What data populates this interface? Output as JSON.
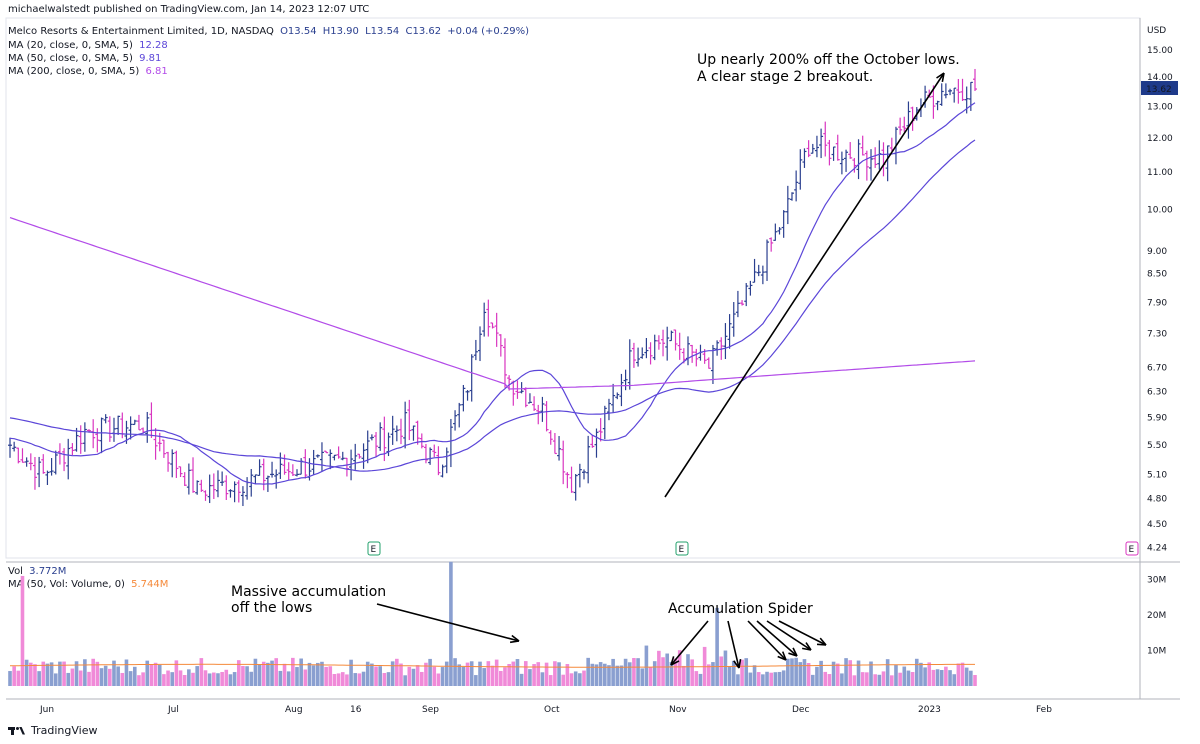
{
  "publisher": "michaelwalstedt published on TradingView.com, Jan 14, 2023 12:07 UTC",
  "legend": {
    "symbol": "Melco Resorts & Entertainment Limited, 1D, NASDAQ",
    "o": "O13.54",
    "h": "H13.90",
    "l": "L13.54",
    "c": "C13.62",
    "chg": "+0.04 (+0.29%)",
    "ma20_label": "MA (20, close, 0, SMA, 5)",
    "ma20_value": "12.28",
    "ma50_label": "MA (50, close, 0, SMA, 5)",
    "ma50_value": "9.81",
    "ma200_label": "MA (200, close, 0, SMA, 5)",
    "ma200_value": "6.81"
  },
  "volume_legend": {
    "vol_label": "Vol",
    "vol_value": "3.772M",
    "ma_label": "MA (50, Vol: Volume, 0)",
    "ma_value": "5.744M"
  },
  "currency": "USD",
  "last_price": "13.62",
  "annotations": {
    "breakout_line1": "Up nearly 200% off the October lows.",
    "breakout_line2": "A clear stage 2 breakout.",
    "accum_line1": "Massive accumulation",
    "accum_line2": "off the lows",
    "spider": "Accumulation Spider"
  },
  "earnings_marker": "E",
  "brand": "TradingView",
  "colors": {
    "up_bar": "#2a3f8f",
    "down_bar": "#d936c0",
    "ma_blue": "#5b46d8",
    "ma_purple": "#b24be8",
    "vol_up": "#8a9fd0",
    "vol_down": "#f08ad8",
    "vol_ma": "#f5893a",
    "price_tag": "#1e3a8a"
  },
  "chart_data": {
    "type": "ohlc",
    "scale": "log",
    "price_axis_ticks": [
      "15.00",
      "14.00",
      "13.00",
      "12.00",
      "11.00",
      "10.00",
      "9.00",
      "8.50",
      "7.90",
      "7.30",
      "6.70",
      "6.30",
      "5.90",
      "5.50",
      "5.10",
      "4.80",
      "4.50",
      "4.24"
    ],
    "volume_axis_ticks": [
      "30M",
      "20M",
      "10M"
    ],
    "x_tick_labels": [
      "Jun",
      "Jul",
      "Aug",
      "16",
      "Sep",
      "Oct",
      "Nov",
      "Dec",
      "2023",
      "Feb"
    ],
    "price_ylim": [
      4.24,
      15.5
    ],
    "key_points": [
      {
        "date": "2022-05-25",
        "close": 5.5
      },
      {
        "date": "2022-06-10",
        "close": 5.7
      },
      {
        "date": "2022-07-01",
        "close": 5.8
      },
      {
        "date": "2022-07-15",
        "close": 5.0
      },
      {
        "date": "2022-08-05",
        "close": 5.1
      },
      {
        "date": "2022-08-19",
        "close": 5.3
      },
      {
        "date": "2022-09-09",
        "close": 5.8
      },
      {
        "date": "2022-09-23",
        "close": 5.2
      },
      {
        "date": "2022-10-03",
        "close": 7.8
      },
      {
        "date": "2022-10-14",
        "close": 6.5
      },
      {
        "date": "2022-10-26",
        "close": 5.0
      },
      {
        "date": "2022-11-10",
        "close": 7.1
      },
      {
        "date": "2022-11-23",
        "close": 6.9
      },
      {
        "date": "2022-12-02",
        "close": 9.8
      },
      {
        "date": "2022-12-08",
        "close": 11.8
      },
      {
        "date": "2022-12-22",
        "close": 11.3
      },
      {
        "date": "2023-01-13",
        "close": 13.62
      }
    ],
    "ma20_last": 12.28,
    "ma50_last": 9.81,
    "ma200_last": 6.81,
    "volume_peaks_m": [
      {
        "date": "2022-05-27",
        "volume": 31
      },
      {
        "date": "2022-09-28",
        "volume": 35
      },
      {
        "date": "2022-12-09",
        "volume": 22
      }
    ],
    "volume_ma_last_m": 5.744
  }
}
